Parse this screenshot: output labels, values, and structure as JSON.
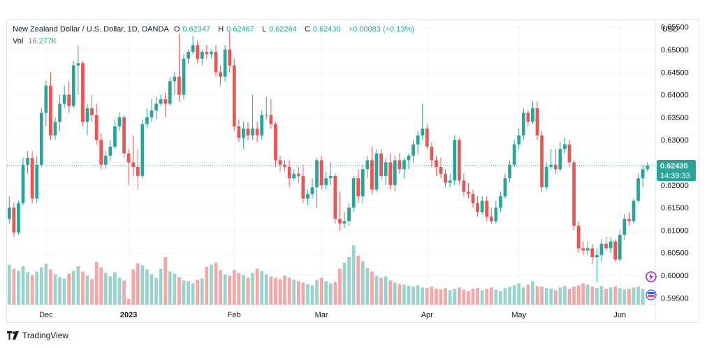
{
  "legend": {
    "title": "New Zealand Dollar / U.S. Dollar, 1D, OANDA",
    "open_label": "O",
    "open": "0.62347",
    "high_label": "H",
    "high": "0.62467",
    "low_label": "L",
    "low": "0.62264",
    "close_label": "C",
    "close": "0.62430",
    "change": "+0.00083 (+0.13%)",
    "vol_label": "Vol",
    "vol": "16.277K"
  },
  "price_badge": {
    "price": "0.62430",
    "countdown": "14:39:33",
    "color": "#26a69a"
  },
  "branding": "TradingView",
  "colors": {
    "up": "#26a69a",
    "down": "#ef5350",
    "vol_up": "#99d3ce",
    "vol_down": "#f5a6a5"
  },
  "chart_data": {
    "type": "candlestick",
    "currency": "USD",
    "ylim": [
      0.5935,
      0.6565
    ],
    "yticks": [
      "0.65500",
      "0.65000",
      "0.64500",
      "0.64000",
      "0.63500",
      "0.63000",
      "0.62500",
      "0.62000",
      "0.61500",
      "0.61000",
      "0.60500",
      "0.60000",
      "0.59500"
    ],
    "xticks": [
      {
        "label": "Dec",
        "index": 8,
        "bold": false
      },
      {
        "label": "2023",
        "index": 26,
        "bold": true
      },
      {
        "label": "Feb",
        "index": 49,
        "bold": false
      },
      {
        "label": "Mar",
        "index": 68,
        "bold": false
      },
      {
        "label": "Apr",
        "index": 91,
        "bold": false
      },
      {
        "label": "May",
        "index": 111,
        "bold": false
      },
      {
        "label": "Jun",
        "index": 133,
        "bold": false
      }
    ],
    "last_close": 0.6243,
    "candles": [
      [
        0.6125,
        0.6175,
        0.6115,
        0.615
      ],
      [
        0.615,
        0.616,
        0.6085,
        0.6095
      ],
      [
        0.6095,
        0.6165,
        0.609,
        0.616
      ],
      [
        0.616,
        0.626,
        0.6155,
        0.6245
      ],
      [
        0.6245,
        0.6275,
        0.6225,
        0.626
      ],
      [
        0.626,
        0.6275,
        0.616,
        0.617
      ],
      [
        0.617,
        0.6265,
        0.616,
        0.6245
      ],
      [
        0.6245,
        0.637,
        0.624,
        0.636
      ],
      [
        0.636,
        0.643,
        0.633,
        0.642
      ],
      [
        0.642,
        0.645,
        0.63,
        0.631
      ],
      [
        0.631,
        0.635,
        0.63,
        0.634
      ],
      [
        0.634,
        0.64,
        0.632,
        0.638
      ],
      [
        0.638,
        0.642,
        0.637,
        0.64
      ],
      [
        0.64,
        0.643,
        0.636,
        0.6375
      ],
      [
        0.6375,
        0.6475,
        0.637,
        0.6465
      ],
      [
        0.6465,
        0.651,
        0.64,
        0.647
      ],
      [
        0.647,
        0.6475,
        0.633,
        0.634
      ],
      [
        0.634,
        0.638,
        0.631,
        0.637
      ],
      [
        0.637,
        0.64,
        0.634,
        0.6355
      ],
      [
        0.6355,
        0.638,
        0.629,
        0.63
      ],
      [
        0.63,
        0.6315,
        0.6235,
        0.6245
      ],
      [
        0.6245,
        0.6275,
        0.6235,
        0.6265
      ],
      [
        0.6265,
        0.63,
        0.6255,
        0.6285
      ],
      [
        0.6285,
        0.6345,
        0.628,
        0.633
      ],
      [
        0.633,
        0.636,
        0.632,
        0.635
      ],
      [
        0.635,
        0.6355,
        0.626,
        0.627
      ],
      [
        0.627,
        0.628,
        0.62,
        0.625
      ],
      [
        0.625,
        0.631,
        0.622,
        0.624
      ],
      [
        0.624,
        0.628,
        0.619,
        0.622
      ],
      [
        0.622,
        0.6345,
        0.6215,
        0.6335
      ],
      [
        0.6335,
        0.637,
        0.6325,
        0.635
      ],
      [
        0.635,
        0.639,
        0.634,
        0.6365
      ],
      [
        0.6365,
        0.6395,
        0.6345,
        0.638
      ],
      [
        0.638,
        0.64,
        0.6375,
        0.639
      ],
      [
        0.639,
        0.6405,
        0.635,
        0.638
      ],
      [
        0.638,
        0.644,
        0.6375,
        0.643
      ],
      [
        0.643,
        0.645,
        0.64,
        0.644
      ],
      [
        0.644,
        0.6535,
        0.6385,
        0.64
      ],
      [
        0.64,
        0.649,
        0.639,
        0.648
      ],
      [
        0.648,
        0.65,
        0.647,
        0.6495
      ],
      [
        0.6495,
        0.653,
        0.649,
        0.651
      ],
      [
        0.651,
        0.652,
        0.647,
        0.648
      ],
      [
        0.648,
        0.65,
        0.6465,
        0.6495
      ],
      [
        0.6495,
        0.651,
        0.648,
        0.649
      ],
      [
        0.649,
        0.65,
        0.648,
        0.6495
      ],
      [
        0.6495,
        0.651,
        0.644,
        0.645
      ],
      [
        0.645,
        0.6465,
        0.642,
        0.644
      ],
      [
        0.644,
        0.651,
        0.643,
        0.65
      ],
      [
        0.65,
        0.654,
        0.645,
        0.6465
      ],
      [
        0.6465,
        0.648,
        0.632,
        0.633
      ],
      [
        0.633,
        0.6345,
        0.6295,
        0.6305
      ],
      [
        0.6305,
        0.634,
        0.628,
        0.6325
      ],
      [
        0.6325,
        0.634,
        0.63,
        0.631
      ],
      [
        0.631,
        0.64,
        0.63,
        0.6325
      ],
      [
        0.6325,
        0.634,
        0.6295,
        0.631
      ],
      [
        0.631,
        0.6365,
        0.63,
        0.6355
      ],
      [
        0.6355,
        0.6395,
        0.6345,
        0.6355
      ],
      [
        0.6355,
        0.639,
        0.6325,
        0.6335
      ],
      [
        0.6335,
        0.634,
        0.624,
        0.6255
      ],
      [
        0.6255,
        0.6265,
        0.623,
        0.6245
      ],
      [
        0.6245,
        0.6255,
        0.623,
        0.624
      ],
      [
        0.624,
        0.6255,
        0.6195,
        0.6215
      ],
      [
        0.6215,
        0.6235,
        0.621,
        0.6225
      ],
      [
        0.6225,
        0.624,
        0.6205,
        0.622
      ],
      [
        0.622,
        0.6245,
        0.616,
        0.617
      ],
      [
        0.617,
        0.619,
        0.6155,
        0.618
      ],
      [
        0.618,
        0.6215,
        0.617,
        0.6195
      ],
      [
        0.6195,
        0.626,
        0.615,
        0.6255
      ],
      [
        0.6255,
        0.6265,
        0.619,
        0.62
      ],
      [
        0.62,
        0.623,
        0.619,
        0.6215
      ],
      [
        0.6215,
        0.625,
        0.62,
        0.622
      ],
      [
        0.622,
        0.6225,
        0.6115,
        0.6125
      ],
      [
        0.6125,
        0.6185,
        0.61,
        0.6115
      ],
      [
        0.6115,
        0.614,
        0.6105,
        0.612
      ],
      [
        0.612,
        0.616,
        0.611,
        0.615
      ],
      [
        0.615,
        0.622,
        0.614,
        0.6215
      ],
      [
        0.6215,
        0.6235,
        0.616,
        0.6175
      ],
      [
        0.6175,
        0.6245,
        0.616,
        0.6235
      ],
      [
        0.6235,
        0.6265,
        0.6215,
        0.6255
      ],
      [
        0.6255,
        0.6285,
        0.618,
        0.619
      ],
      [
        0.619,
        0.628,
        0.6185,
        0.627
      ],
      [
        0.627,
        0.628,
        0.621,
        0.622
      ],
      [
        0.622,
        0.626,
        0.62,
        0.625
      ],
      [
        0.625,
        0.627,
        0.619,
        0.62
      ],
      [
        0.62,
        0.6265,
        0.6185,
        0.6255
      ],
      [
        0.6255,
        0.627,
        0.6225,
        0.6235
      ],
      [
        0.6235,
        0.626,
        0.6215,
        0.6255
      ],
      [
        0.6255,
        0.627,
        0.6235,
        0.6265
      ],
      [
        0.6265,
        0.63,
        0.625,
        0.629
      ],
      [
        0.629,
        0.632,
        0.627,
        0.631
      ],
      [
        0.631,
        0.638,
        0.63,
        0.6325
      ],
      [
        0.6325,
        0.6335,
        0.628,
        0.6285
      ],
      [
        0.6285,
        0.6295,
        0.624,
        0.6255
      ],
      [
        0.6255,
        0.6265,
        0.622,
        0.624
      ],
      [
        0.624,
        0.626,
        0.6215,
        0.6225
      ],
      [
        0.6225,
        0.6235,
        0.6195,
        0.6205
      ],
      [
        0.6205,
        0.6225,
        0.6195,
        0.621
      ],
      [
        0.621,
        0.631,
        0.62,
        0.63
      ],
      [
        0.63,
        0.6305,
        0.62,
        0.621
      ],
      [
        0.621,
        0.6225,
        0.6175,
        0.6185
      ],
      [
        0.6185,
        0.6205,
        0.617,
        0.618
      ],
      [
        0.618,
        0.619,
        0.615,
        0.616
      ],
      [
        0.616,
        0.6175,
        0.613,
        0.614
      ],
      [
        0.614,
        0.6175,
        0.6135,
        0.6165
      ],
      [
        0.6165,
        0.6175,
        0.612,
        0.613
      ],
      [
        0.613,
        0.615,
        0.6115,
        0.612
      ],
      [
        0.612,
        0.6165,
        0.6115,
        0.615
      ],
      [
        0.615,
        0.6185,
        0.614,
        0.6175
      ],
      [
        0.6175,
        0.6225,
        0.617,
        0.6215
      ],
      [
        0.6215,
        0.6255,
        0.6205,
        0.6245
      ],
      [
        0.6245,
        0.63,
        0.624,
        0.629
      ],
      [
        0.629,
        0.6325,
        0.628,
        0.631
      ],
      [
        0.631,
        0.637,
        0.63,
        0.636
      ],
      [
        0.636,
        0.6365,
        0.633,
        0.634
      ],
      [
        0.634,
        0.6385,
        0.6335,
        0.637
      ],
      [
        0.637,
        0.6385,
        0.63,
        0.631
      ],
      [
        0.631,
        0.632,
        0.6185,
        0.6195
      ],
      [
        0.6195,
        0.625,
        0.619,
        0.624
      ],
      [
        0.624,
        0.628,
        0.6235,
        0.6245
      ],
      [
        0.6245,
        0.628,
        0.6225,
        0.6235
      ],
      [
        0.6235,
        0.6295,
        0.623,
        0.628
      ],
      [
        0.628,
        0.6305,
        0.627,
        0.629
      ],
      [
        0.629,
        0.63,
        0.624,
        0.625
      ],
      [
        0.625,
        0.6255,
        0.61,
        0.611
      ],
      [
        0.611,
        0.612,
        0.605,
        0.606
      ],
      [
        0.606,
        0.6075,
        0.6045,
        0.6055
      ],
      [
        0.6055,
        0.6075,
        0.6045,
        0.606
      ],
      [
        0.606,
        0.607,
        0.6025,
        0.604
      ],
      [
        0.604,
        0.606,
        0.5985,
        0.6045
      ],
      [
        0.6045,
        0.608,
        0.603,
        0.607
      ],
      [
        0.607,
        0.6085,
        0.6055,
        0.606
      ],
      [
        0.606,
        0.6085,
        0.605,
        0.6075
      ],
      [
        0.6075,
        0.608,
        0.603,
        0.6035
      ],
      [
        0.6035,
        0.61,
        0.603,
        0.609
      ],
      [
        0.609,
        0.6135,
        0.608,
        0.6125
      ],
      [
        0.6125,
        0.614,
        0.611,
        0.612
      ],
      [
        0.612,
        0.617,
        0.6115,
        0.6165
      ],
      [
        0.6165,
        0.6225,
        0.616,
        0.6215
      ],
      [
        0.6215,
        0.6245,
        0.6195,
        0.6235
      ],
      [
        0.6235,
        0.625,
        0.623,
        0.6243
      ]
    ],
    "volumes": [
      5.8,
      5.2,
      4.9,
      5.6,
      4.7,
      4.3,
      4.8,
      5.4,
      5.9,
      5.1,
      4.4,
      4.0,
      3.8,
      4.5,
      4.9,
      5.6,
      4.8,
      4.2,
      3.7,
      6.2,
      5.4,
      4.6,
      4.1,
      4.7,
      3.9,
      3.5,
      0.8,
      5.1,
      6.0,
      5.7,
      5.1,
      4.4,
      3.9,
      5.2,
      6.9,
      4.8,
      4.5,
      4.0,
      3.5,
      3.4,
      3.1,
      3.6,
      3.8,
      5.5,
      5.8,
      6.1,
      5.0,
      4.4,
      4.2,
      5.0,
      4.6,
      4.3,
      3.9,
      4.6,
      5.2,
      4.9,
      4.4,
      4.1,
      3.9,
      3.7,
      4.2,
      3.9,
      3.6,
      3.4,
      3.2,
      3.0,
      2.8,
      3.6,
      3.9,
      3.4,
      3.1,
      3.3,
      5.2,
      6.1,
      6.9,
      8.6,
      7.1,
      6.3,
      5.3,
      4.8,
      4.2,
      3.9,
      4.1,
      3.5,
      3.2,
      3.0,
      2.9,
      2.7,
      2.6,
      2.8,
      2.5,
      2.4,
      2.6,
      2.3,
      2.2,
      2.4,
      2.1,
      2.3,
      2.5,
      2.2,
      2.0,
      2.3,
      2.4,
      2.1,
      2.3,
      2.5,
      2.2,
      2.0,
      2.4,
      2.6,
      2.8,
      3.1,
      2.5,
      2.9,
      3.4,
      2.7,
      2.6,
      2.4,
      2.3,
      2.1,
      2.5,
      2.7,
      2.3,
      2.6,
      2.8,
      3.1,
      2.9,
      2.6,
      2.4,
      2.7,
      2.3,
      2.5,
      2.6,
      2.4,
      2.2,
      2.3,
      2.5,
      2.6,
      2.3
    ]
  }
}
